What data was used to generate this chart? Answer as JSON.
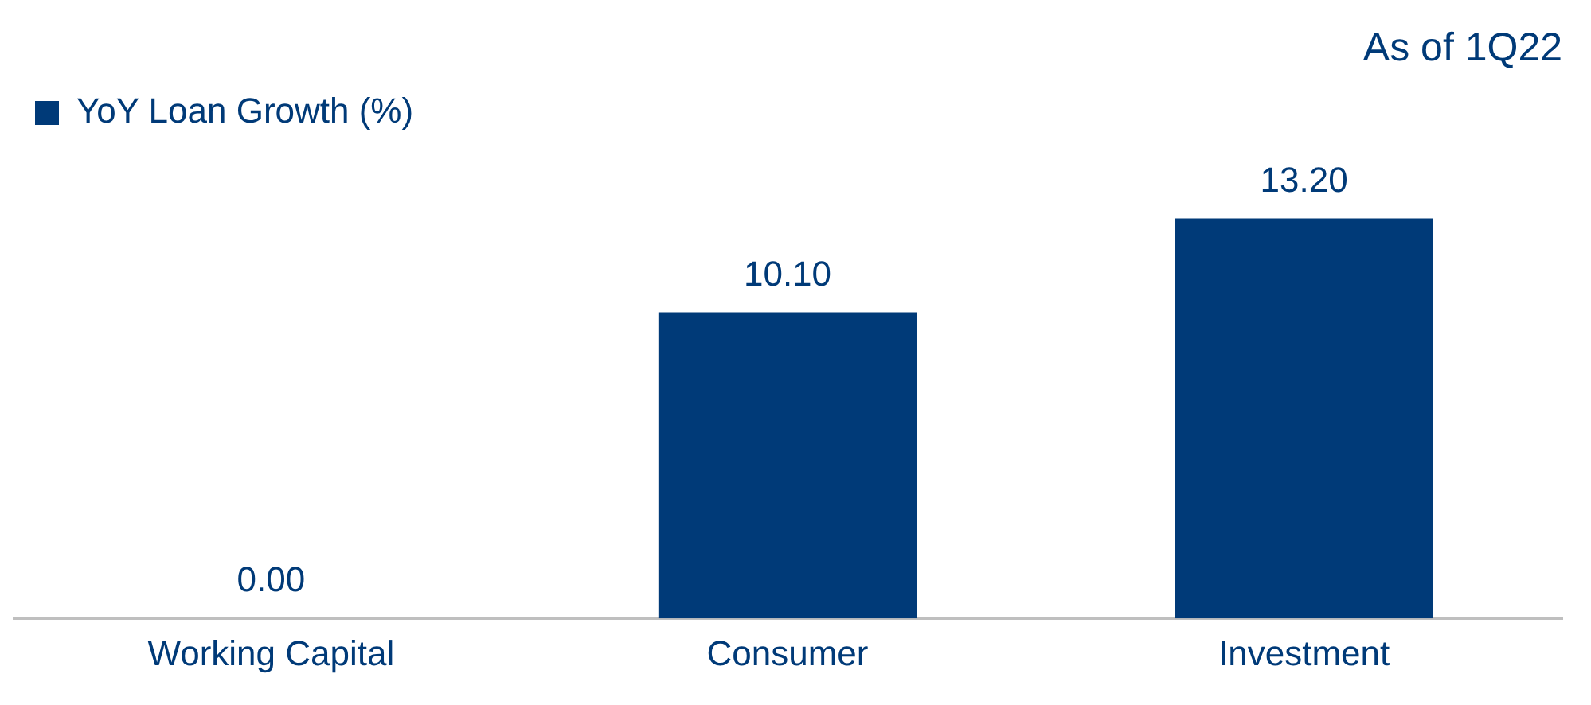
{
  "chart_data": {
    "type": "bar",
    "title": "As of 1Q22",
    "categories": [
      "Working Capital",
      "Consumer",
      "Investment"
    ],
    "series": [
      {
        "name": "YoY Loan Growth (%)",
        "color": "#003a78",
        "values": [
          0,
          10.1,
          13.2
        ],
        "value_labels": [
          "0.00",
          "10.10",
          "13.20"
        ]
      }
    ],
    "legend": "top left",
    "grid": false
  }
}
